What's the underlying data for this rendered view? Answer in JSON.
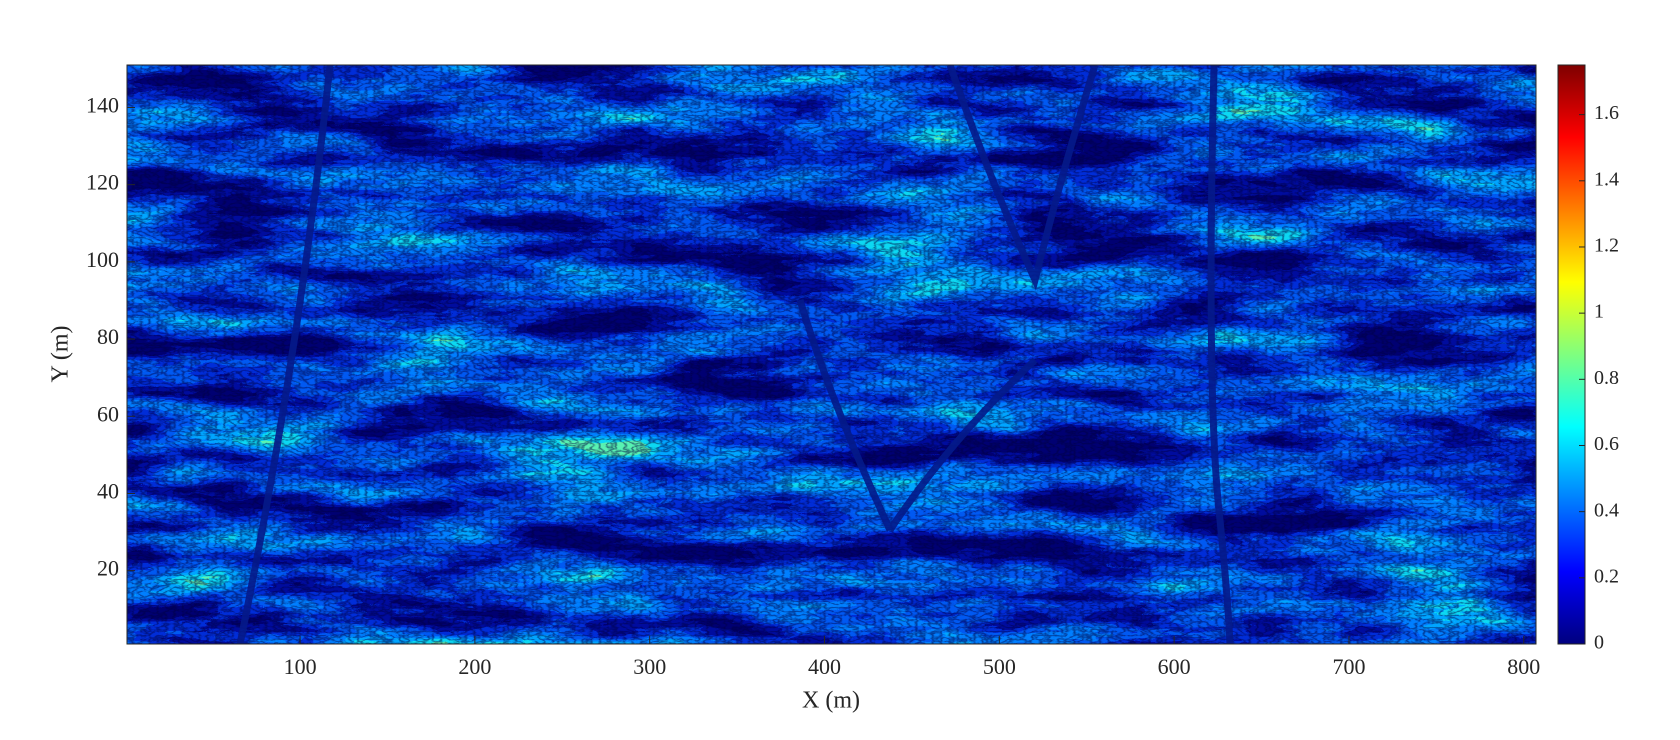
{
  "chart_data": {
    "type": "contour",
    "xlabel": "X (m)",
    "ylabel": "Y (m)",
    "xlim": [
      1,
      807
    ],
    "ylim": [
      1,
      151
    ],
    "xticks": [
      100,
      200,
      300,
      400,
      500,
      600,
      700,
      800
    ],
    "yticks": [
      20,
      40,
      60,
      80,
      100,
      120,
      140
    ],
    "colormap": "jet",
    "clim": [
      0,
      1.75
    ],
    "cticks": [
      0,
      0.2,
      0.4,
      0.6,
      0.8,
      1,
      1.2,
      1.4,
      1.6
    ]
  }
}
